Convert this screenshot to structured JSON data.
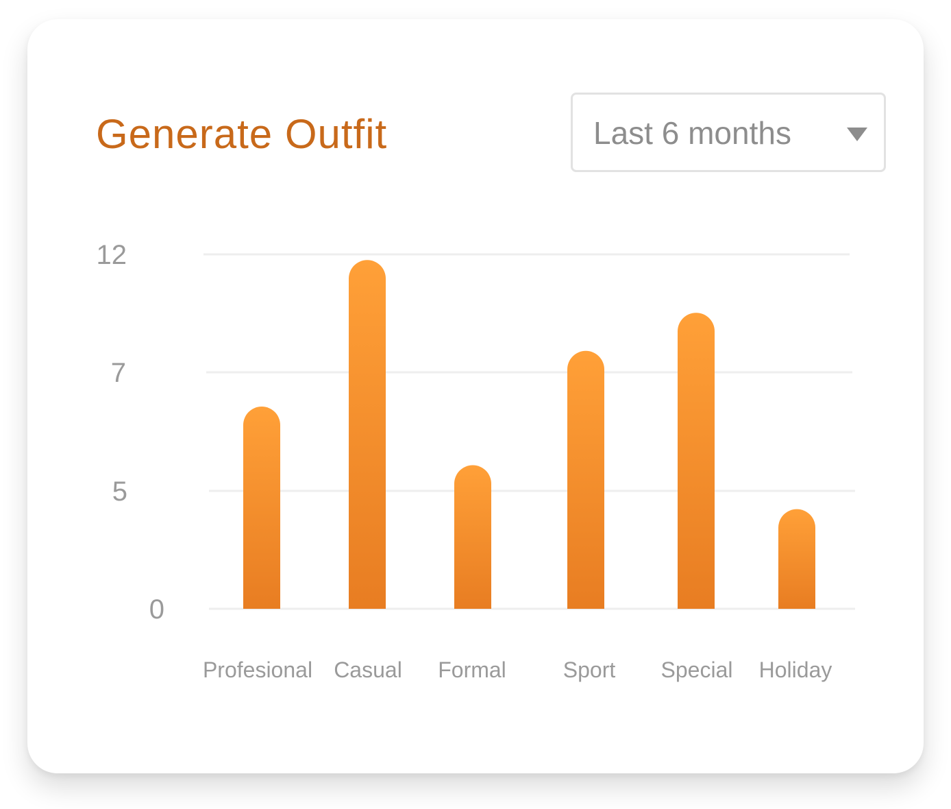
{
  "card": {
    "title": "Generate Outfit",
    "period_select": {
      "selected": "Last 6 months"
    }
  },
  "colors": {
    "title": "#c8691a",
    "bar_top": "#ffa038",
    "bar_bottom": "#e87d22",
    "grid": "#eeeeee",
    "label": "#9a9a9a"
  },
  "chart_data": {
    "type": "bar",
    "title": "",
    "xlabel": "",
    "ylabel": "",
    "categories": [
      "Profesional",
      "Casual",
      "Formal",
      "Sport",
      "Special",
      "Holiday"
    ],
    "values": [
      6.9,
      11.9,
      4.9,
      8.8,
      10.1,
      3.4
    ],
    "yticks": [
      "0",
      "5",
      "7",
      "12"
    ],
    "ylim": [
      0,
      12
    ],
    "grid": true,
    "legend": "none"
  }
}
